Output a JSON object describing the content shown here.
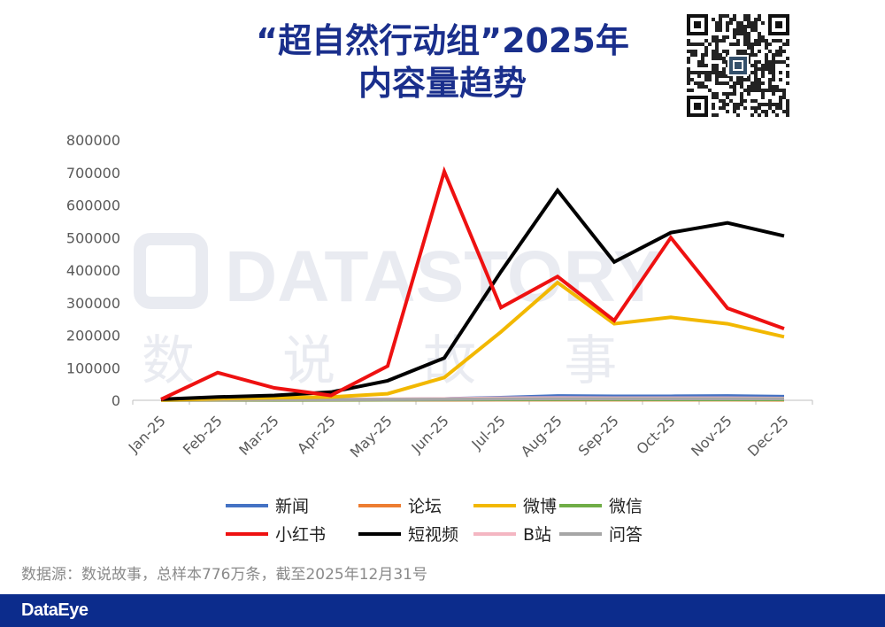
{
  "header": {
    "title_line1": "“超自然行动组”2025年",
    "title_line2": "内容量趋势"
  },
  "watermark": {
    "text_en": "DATASTORY",
    "text_cn": "数 说 故 事"
  },
  "chart_data": {
    "type": "line",
    "categories": [
      "Jan-25",
      "Feb-25",
      "Mar-25",
      "Apr-25",
      "May-25",
      "Jun-25",
      "Jul-25",
      "Aug-25",
      "Sep-25",
      "Oct-25",
      "Nov-25",
      "Dec-25"
    ],
    "ylim": [
      0,
      800000
    ],
    "yticks": [
      0,
      100000,
      200000,
      300000,
      400000,
      500000,
      600000,
      700000,
      800000
    ],
    "ytick_labels": [
      "0",
      "100000",
      "200000",
      "300000",
      "400000",
      "500000",
      "600000",
      "700000",
      "800000"
    ],
    "grid": false,
    "legend_position": "bottom",
    "series": [
      {
        "name": "新闻",
        "color": "#4472c4",
        "values": [
          500,
          1000,
          1500,
          2000,
          3000,
          5000,
          9000,
          14000,
          13000,
          13000,
          14000,
          12000
        ]
      },
      {
        "name": "论坛",
        "color": "#ed7d31",
        "values": [
          100,
          200,
          300,
          400,
          600,
          800,
          1000,
          1200,
          1100,
          1000,
          1000,
          900
        ]
      },
      {
        "name": "微博",
        "color": "#f2b800",
        "values": [
          1000,
          5000,
          8000,
          10000,
          20000,
          70000,
          210000,
          362000,
          235000,
          255000,
          235000,
          195000
        ]
      },
      {
        "name": "微信",
        "color": "#70ad47",
        "values": [
          100,
          200,
          400,
          600,
          1000,
          1500,
          2000,
          2500,
          2400,
          2200,
          2200,
          2000
        ]
      },
      {
        "name": "小红书",
        "color": "#ee1111",
        "values": [
          3000,
          85000,
          38000,
          15000,
          105000,
          703000,
          285000,
          380000,
          245000,
          500000,
          283000,
          220000
        ]
      },
      {
        "name": "短视频",
        "color": "#000000",
        "values": [
          3000,
          10000,
          15000,
          25000,
          60000,
          130000,
          395000,
          645000,
          425000,
          515000,
          545000,
          505000
        ]
      },
      {
        "name": "B站",
        "color": "#f4b6c2",
        "values": [
          1000,
          2000,
          3000,
          3000,
          4000,
          5000,
          7000,
          8000,
          7000,
          7000,
          7000,
          6000
        ]
      },
      {
        "name": "问答",
        "color": "#a6a6a6",
        "values": [
          500,
          1000,
          1500,
          2000,
          2500,
          3000,
          4000,
          5000,
          5000,
          5000,
          5000,
          4500
        ]
      }
    ]
  },
  "source": "数据源：数说故事，总样本776万条，截至2025年12月31号",
  "footer": {
    "brand": "DataEye"
  }
}
